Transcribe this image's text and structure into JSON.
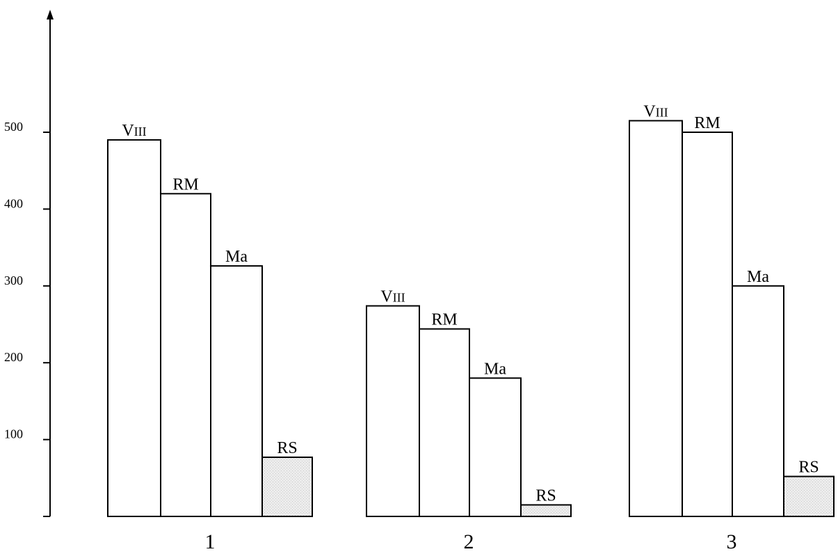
{
  "chart_data": {
    "type": "bar",
    "title": "",
    "xlabel": "",
    "ylabel": "",
    "ylim": [
      0,
      560
    ],
    "yticks": [
      100,
      200,
      300,
      400,
      500
    ],
    "bar_labels": [
      "VIII",
      "RM",
      "Ma",
      "RS"
    ],
    "highlight_fill": "#e6e6e6",
    "groups": [
      {
        "label": "1",
        "values": [
          490,
          420,
          326,
          77
        ]
      },
      {
        "label": "2",
        "values": [
          274,
          244,
          180,
          15
        ]
      },
      {
        "label": "3",
        "values": [
          515,
          500,
          300,
          52
        ]
      }
    ]
  }
}
